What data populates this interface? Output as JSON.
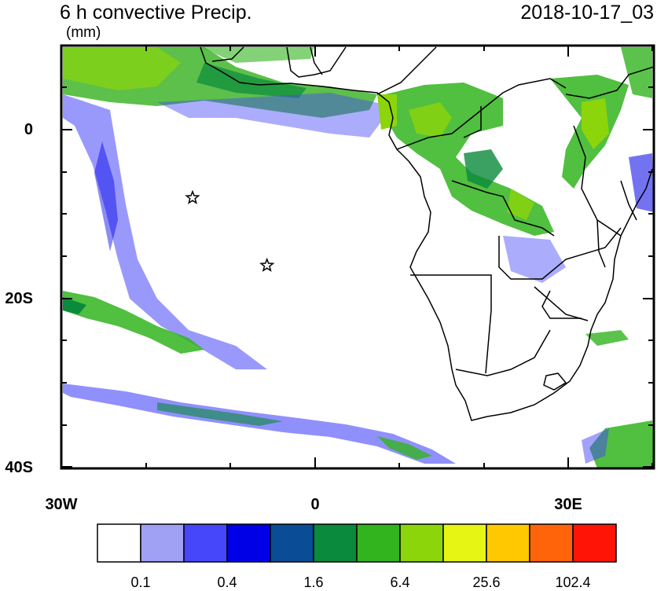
{
  "header": {
    "title": "6 h convective Precip.",
    "datetime": "2018-10-17_03",
    "units": "(mm)"
  },
  "axes": {
    "y_labels": [
      "0",
      "20S",
      "40S"
    ],
    "x_labels": [
      "30W",
      "0",
      "30E"
    ]
  },
  "colorbar": {
    "colors": [
      "#ffffff",
      "#a0a0f5",
      "#4646fa",
      "#0000e6",
      "#0a4c96",
      "#0a8a3c",
      "#32b41e",
      "#8cd50a",
      "#e6f514",
      "#ffc800",
      "#ff640a",
      "#ff1405"
    ],
    "labels": [
      "0.1",
      "0.4",
      "1.6",
      "6.4",
      "25.6",
      "102.4"
    ]
  },
  "markers": [
    {
      "name": "star-marker",
      "lon": -14.5,
      "lat": -8
    },
    {
      "name": "star-marker",
      "lon": -5.7,
      "lat": -16
    }
  ]
}
